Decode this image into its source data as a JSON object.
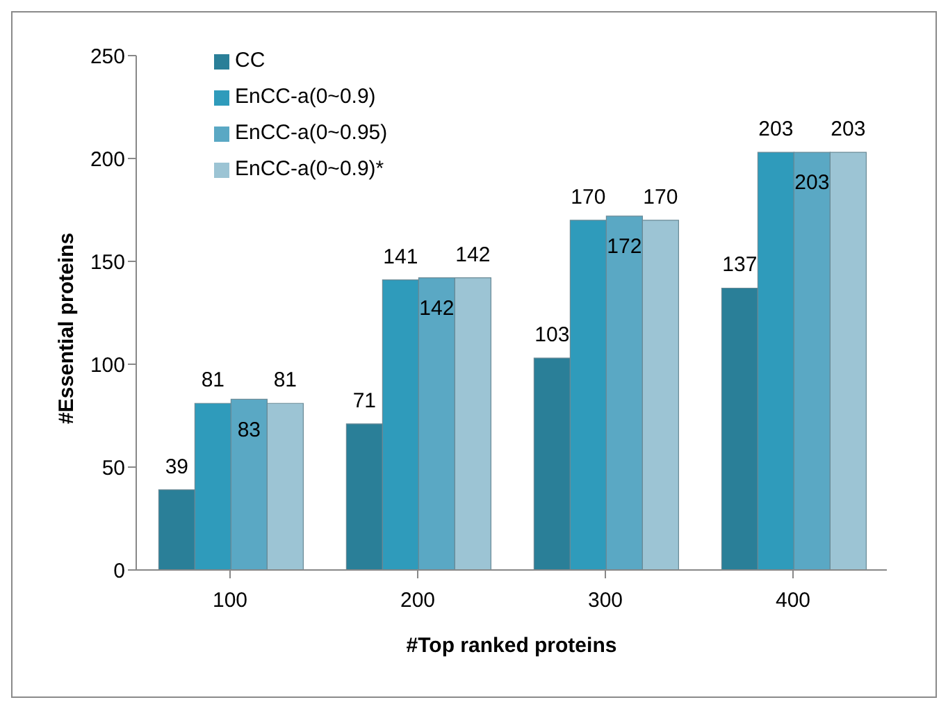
{
  "chart_data": {
    "type": "bar",
    "xlabel": "#Top ranked proteins",
    "ylabel": "#Essential proteins",
    "categories": [
      "100",
      "200",
      "300",
      "400"
    ],
    "series": [
      {
        "name": "CC",
        "color": "#2a7f98",
        "values": [
          39,
          71,
          103,
          137
        ]
      },
      {
        "name": "EnCC-a(0~0.9)",
        "color": "#2f9bbb",
        "values": [
          81,
          141,
          170,
          203
        ]
      },
      {
        "name": "EnCC-a(0~0.95)",
        "color": "#5aa8c4",
        "values": [
          83,
          142,
          172,
          203
        ]
      },
      {
        "name": "EnCC-a(0~0.9)*",
        "color": "#9cc4d4",
        "values": [
          81,
          142,
          170,
          203
        ]
      }
    ],
    "ylim": [
      0,
      250
    ],
    "yticks": [
      0,
      50,
      100,
      150,
      200,
      250
    ],
    "grid": false,
    "legend": "top left",
    "data_labels": true
  }
}
